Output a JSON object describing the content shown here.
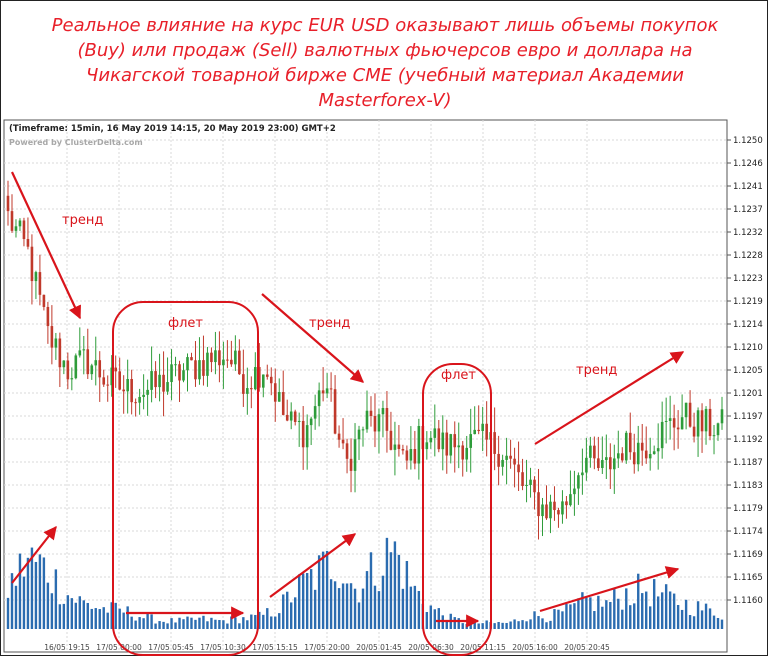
{
  "header": {
    "title": "Реальное влияние на курс EUR USD оказывают лишь объемы покупок (Buy) или продаж (Sell)  валютных фьючерсов евро и доллара на Чикагской товарной бирже CME (учебный материал Академии Masterforex-V)"
  },
  "chart_info": {
    "timeframe": "(Timeframe: 15min, 16 May 2019 14:15, 20 May 2019 23:00) GMT+2",
    "powered_by": "Powered by ClusterDelta.com"
  },
  "colors": {
    "title": "#e8202a",
    "annotation": "#d9141b",
    "bull": "#2e9c3a",
    "bear": "#c0392b",
    "volume": "#2b6cb0",
    "grid": "#d9d9d9"
  },
  "chart_data": {
    "type": "candlestick",
    "title": "(Timeframe: 15min, 16 May 2019 14:15, 20 May 2019 23:00) GMT+2",
    "ylim": [
      1.1155,
      1.1254
    ],
    "y_ticks": [
      "1.1250",
      "1.1246",
      "1.1241",
      "1.1237",
      "1.1232",
      "1.1228",
      "1.1223",
      "1.1219",
      "1.1214",
      "1.1210",
      "1.1205",
      "1.1201",
      "1.1197",
      "1.1192",
      "1.1187",
      "1.1183",
      "1.1179",
      "1.1174",
      "1.1169",
      "1.1165",
      "1.1160"
    ],
    "x_ticks": [
      "16/05 19:15",
      "17/05 00:00",
      "17/05 05:45",
      "17/05 10:30",
      "17/05 15:15",
      "17/05 20:00",
      "20/05 01:45",
      "20/05 06:30",
      "20/05 11:15",
      "20/05 16:00",
      "20/05 20:45"
    ],
    "price_anchors": [
      1.1235,
      1.1228,
      1.1212,
      1.1205,
      1.1207,
      1.1203,
      1.1201,
      1.1201,
      1.1203,
      1.1205,
      1.1207,
      1.1208,
      1.1203,
      1.1206,
      1.1195,
      1.1193,
      1.1203,
      1.1186,
      1.1195,
      1.1194,
      1.1186,
      1.1193,
      1.119,
      1.1191,
      1.1191,
      1.1189,
      1.1182,
      1.1178,
      1.1178,
      1.1188,
      1.1185,
      1.119,
      1.119,
      1.1193,
      1.1196,
      1.1194,
      1.1194
    ],
    "volume_anchors": [
      40,
      70,
      60,
      35,
      25,
      20,
      18,
      12,
      8,
      8,
      10,
      8,
      10,
      12,
      20,
      40,
      55,
      70,
      40,
      60,
      80,
      40,
      20,
      10,
      6,
      6,
      6,
      14,
      12,
      18,
      28,
      25,
      35,
      40,
      32,
      25,
      20,
      15
    ],
    "grid": true,
    "grid_style": "dotted"
  },
  "annotations": [
    {
      "kind": "arrow",
      "label": "тренд"
    },
    {
      "kind": "ellipse",
      "label": "флет"
    },
    {
      "kind": "arrow",
      "label": "тренд"
    },
    {
      "kind": "ellipse",
      "label": "флет"
    },
    {
      "kind": "arrow",
      "label": "тренд"
    }
  ]
}
